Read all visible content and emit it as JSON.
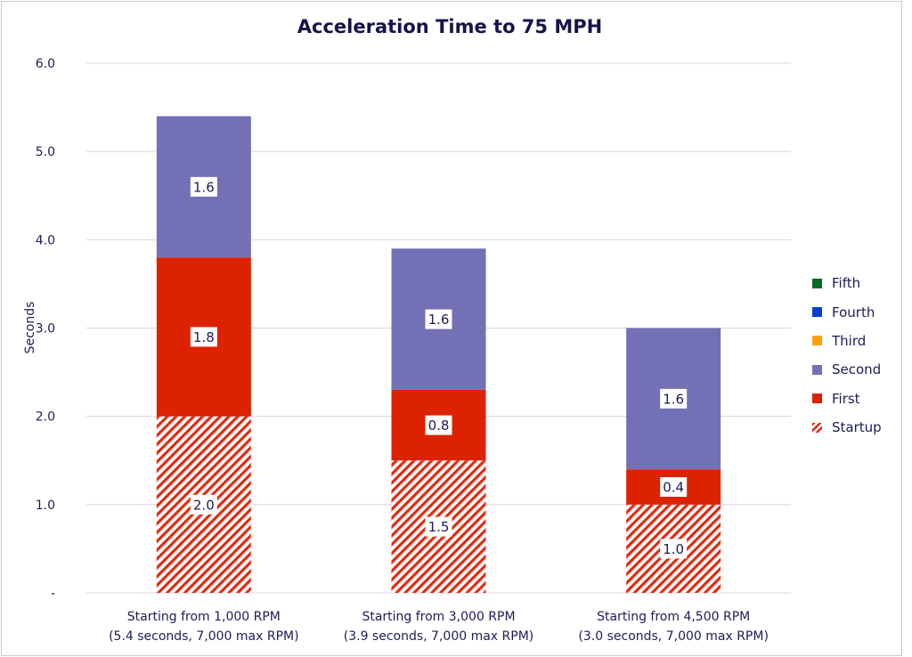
{
  "chart_data": {
    "type": "bar",
    "stacked": true,
    "title": "Acceleration Time to 75 MPH",
    "xlabel": "",
    "ylabel": "Seconds",
    "ylim": [
      0,
      6
    ],
    "yticks": [
      0,
      1,
      2,
      3,
      4,
      5,
      6
    ],
    "ytick_labels": [
      "-",
      "1.0",
      "2.0",
      "3.0",
      "4.0",
      "5.0",
      "6.0"
    ],
    "grid": true,
    "legend_position": "right",
    "categories": [
      [
        "Starting  from 1,000 RPM",
        "(5.4 seconds, 7,000 max RPM)"
      ],
      [
        "Starting  from 3,000 RPM",
        "(3.9 seconds, 7,000 max RPM)"
      ],
      [
        "Starting  from 4,500 RPM",
        "(3.0 seconds, 7,000 max RPM)"
      ]
    ],
    "series": [
      {
        "name": "Startup",
        "values": [
          2.0,
          1.5,
          1.0
        ],
        "color": "#e02a10",
        "pattern": "diagonal-hatch",
        "labels": [
          "2.0",
          "1.5",
          "1.0"
        ]
      },
      {
        "name": "First",
        "values": [
          1.8,
          0.8,
          0.4
        ],
        "color": "#dd2200",
        "labels": [
          "1.8",
          "0.8",
          "0.4"
        ]
      },
      {
        "name": "Second",
        "values": [
          1.6,
          1.6,
          1.6
        ],
        "color": "#7470b5",
        "labels": [
          "1.6",
          "1.6",
          "1.6"
        ]
      },
      {
        "name": "Third",
        "values": [
          0,
          0,
          0
        ],
        "color": "#ffa010"
      },
      {
        "name": "Fourth",
        "values": [
          0,
          0,
          0
        ],
        "color": "#0b3fd0"
      },
      {
        "name": "Fifth",
        "values": [
          0,
          0,
          0
        ],
        "color": "#0a6a2a"
      }
    ]
  }
}
